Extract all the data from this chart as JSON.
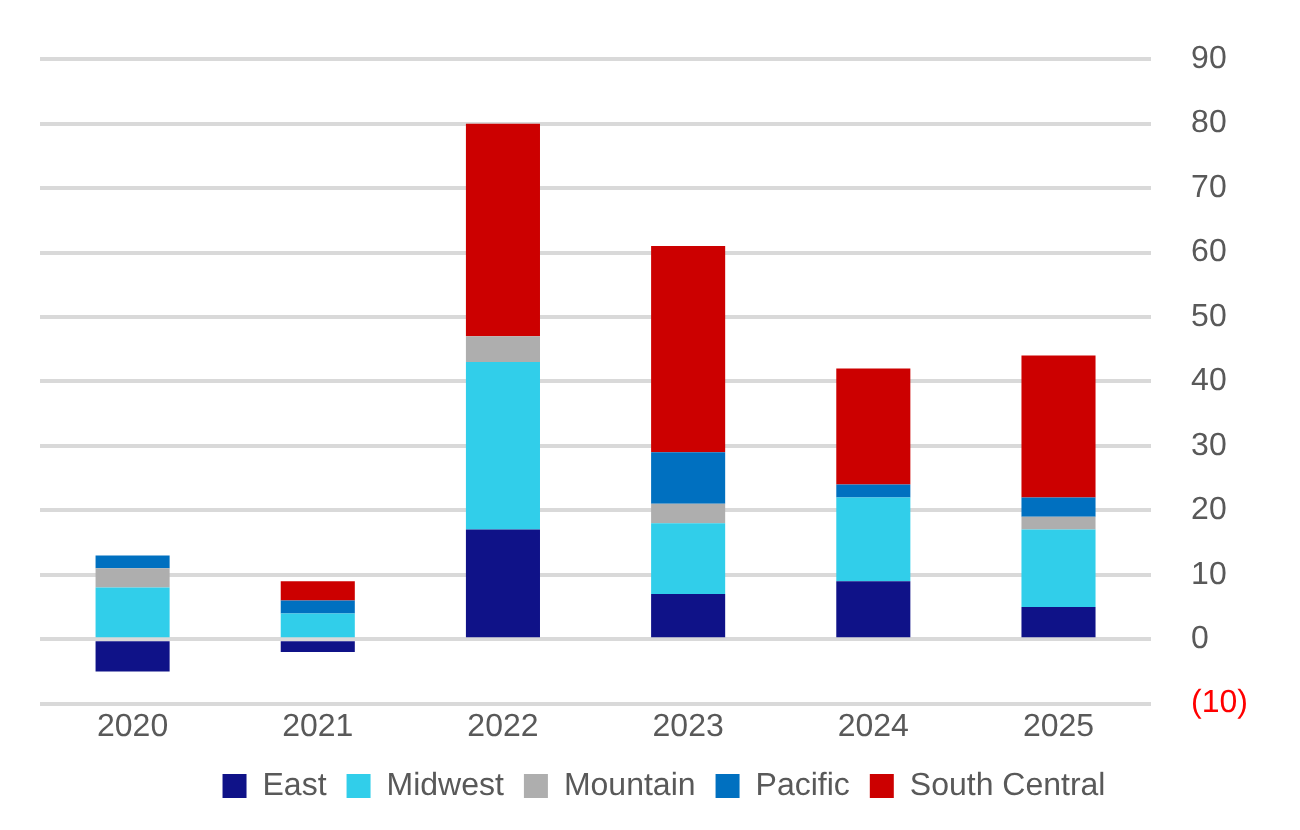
{
  "chart_data": {
    "type": "bar",
    "stacked": true,
    "categories": [
      "2020",
      "2021",
      "2022",
      "2023",
      "2024",
      "2025"
    ],
    "series": [
      {
        "name": "East",
        "color": "#0f1288",
        "values": [
          -5,
          -2,
          17,
          7,
          9,
          5
        ]
      },
      {
        "name": "Midwest",
        "color": "#31ceea",
        "values": [
          8,
          4,
          26,
          11,
          13,
          12
        ]
      },
      {
        "name": "Mountain",
        "color": "#aeaeae",
        "values": [
          3,
          0,
          4,
          3,
          0,
          2
        ]
      },
      {
        "name": "Pacific",
        "color": "#0070c0",
        "values": [
          2,
          2,
          0,
          8,
          2,
          3
        ]
      },
      {
        "name": "South Central",
        "color": "#cc0000",
        "values": [
          0,
          3,
          33,
          32,
          18,
          22
        ]
      }
    ],
    "ylim": [
      -10,
      90
    ],
    "yticks": [
      {
        "value": -10,
        "label": "(10)"
      },
      0,
      10,
      20,
      30,
      40,
      50,
      60,
      70,
      80,
      90
    ],
    "grid": "y",
    "legend": "bottom"
  }
}
